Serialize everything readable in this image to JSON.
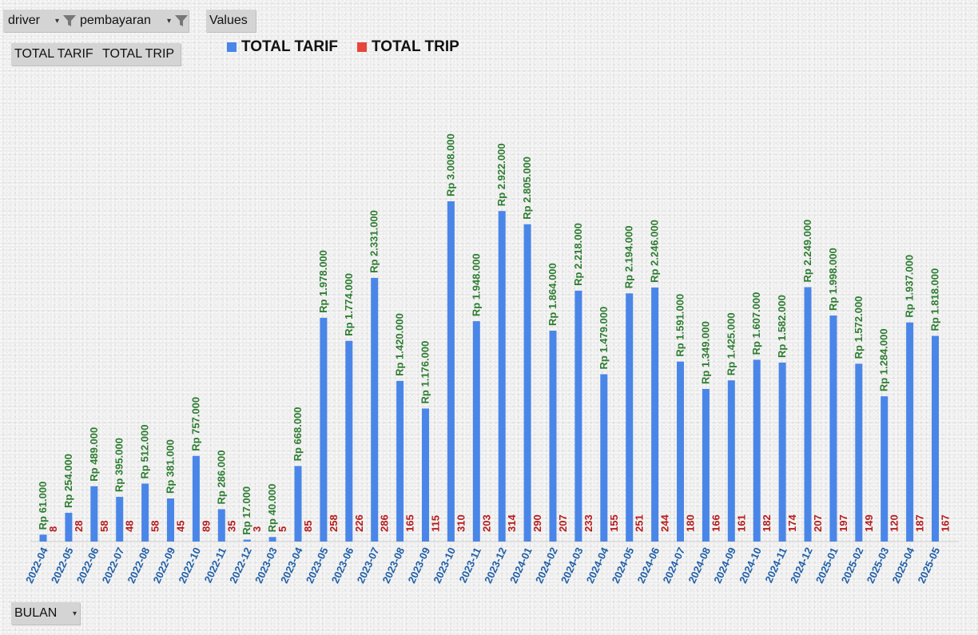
{
  "filters": {
    "driver_label": "driver",
    "pembayaran_label": "pembayaran",
    "values_label": "Values",
    "tarif_button": "TOTAL TARIF",
    "trip_button": "TOTAL TRIP",
    "bulan_label": "BULAN"
  },
  "icons": {
    "filter": "funnel-icon",
    "dropdown": "dropdown-arrow-icon"
  },
  "colors": {
    "tarif_bar": "#4A86E8",
    "trip_bar": "#E6463C",
    "tarif_label": "#2E7D32",
    "trip_label": "#B71C1C",
    "axis_label": "#1F5FA8"
  },
  "chart_data": {
    "type": "bar",
    "legend_position": "top",
    "grid": false,
    "categories": [
      "2022-04",
      "2022-05",
      "2022-06",
      "2022-07",
      "2022-08",
      "2022-09",
      "2022-10",
      "2022-11",
      "2022-12",
      "2023-03",
      "2023-04",
      "2023-05",
      "2023-06",
      "2023-07",
      "2023-08",
      "2023-09",
      "2023-10",
      "2023-11",
      "2023-12",
      "2024-01",
      "2024-02",
      "2024-03",
      "2024-04",
      "2024-05",
      "2024-06",
      "2024-07",
      "2024-08",
      "2024-09",
      "2024-10",
      "2024-11",
      "2024-12",
      "2025-01",
      "2025-02",
      "2025-03",
      "2025-04",
      "2025-05"
    ],
    "series": [
      {
        "name": "TOTAL TARIF",
        "values": [
          61000,
          254000,
          489000,
          395000,
          512000,
          381000,
          757000,
          286000,
          17000,
          40000,
          668000,
          1978000,
          1774000,
          2331000,
          1420000,
          1176000,
          3008000,
          1948000,
          2922000,
          2805000,
          1864000,
          2218000,
          1479000,
          2194000,
          2246000,
          1591000,
          1349000,
          1425000,
          1607000,
          1582000,
          2249000,
          1998000,
          1572000,
          1284000,
          1937000,
          1818000
        ],
        "labels": [
          "Rp 61.000",
          "Rp 254.000",
          "Rp 489.000",
          "Rp 395.000",
          "Rp 512.000",
          "Rp 381.000",
          "Rp 757.000",
          "Rp 286.000",
          "Rp 17.000",
          "Rp 40.000",
          "Rp 668.000",
          "Rp 1.978.000",
          "Rp 1.774.000",
          "Rp 2.331.000",
          "Rp 1.420.000",
          "Rp 1.176.000",
          "Rp 3.008.000",
          "Rp 1.948.000",
          "Rp 2.922.000",
          "Rp 2.805.000",
          "Rp 1.864.000",
          "Rp 2.218.000",
          "Rp 1.479.000",
          "Rp 2.194.000",
          "Rp 2.246.000",
          "Rp 1.591.000",
          "Rp 1.349.000",
          "Rp 1.425.000",
          "Rp 1.607.000",
          "Rp 1.582.000",
          "Rp 2.249.000",
          "Rp 1.998.000",
          "Rp 1.572.000",
          "Rp 1.284.000",
          "Rp 1.937.000",
          "Rp 1.818.000"
        ]
      },
      {
        "name": "TOTAL TRIP",
        "values": [
          8,
          28,
          58,
          48,
          58,
          45,
          89,
          35,
          3,
          5,
          85,
          258,
          226,
          286,
          165,
          115,
          310,
          203,
          314,
          290,
          207,
          233,
          155,
          251,
          244,
          180,
          166,
          161,
          182,
          174,
          207,
          197,
          149,
          120,
          187,
          167
        ],
        "labels": [
          "8",
          "28",
          "58",
          "48",
          "58",
          "45",
          "89",
          "35",
          "3",
          "5",
          "85",
          "258",
          "226",
          "286",
          "165",
          "115",
          "310",
          "203",
          "314",
          "290",
          "207",
          "233",
          "155",
          "251",
          "244",
          "180",
          "166",
          "161",
          "182",
          "174",
          "207",
          "197",
          "149",
          "120",
          "187",
          "167"
        ]
      }
    ]
  }
}
